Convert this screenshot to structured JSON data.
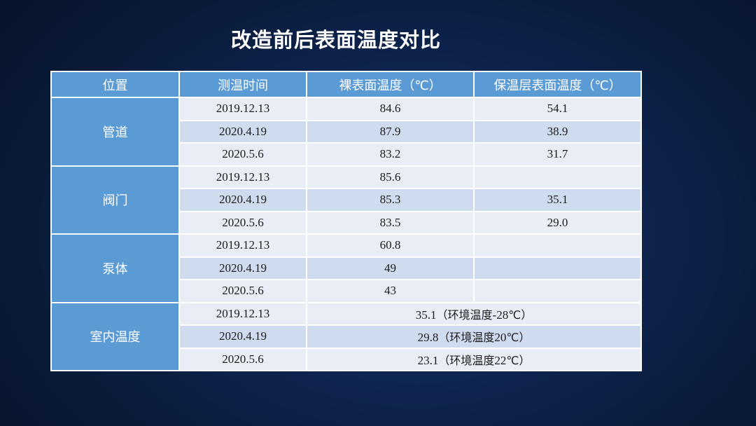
{
  "title": "改造前后表面温度对比",
  "table": {
    "headers": [
      "位置",
      "测温时间",
      "裸表面温度（℃）",
      "保温层表面温度（℃）"
    ],
    "groups": [
      {
        "location": "管道",
        "rows": [
          {
            "date": "2019.12.13",
            "bare": "84.6",
            "insulated": "54.1"
          },
          {
            "date": "2020.4.19",
            "bare": "87.9",
            "insulated": "38.9"
          },
          {
            "date": "2020.5.6",
            "bare": "83.2",
            "insulated": "31.7"
          }
        ]
      },
      {
        "location": "阀门",
        "rows": [
          {
            "date": "2019.12.13",
            "bare": "85.6",
            "insulated": ""
          },
          {
            "date": "2020.4.19",
            "bare": "85.3",
            "insulated": "35.1"
          },
          {
            "date": "2020.5.6",
            "bare": "83.5",
            "insulated": "29.0"
          }
        ]
      },
      {
        "location": "泵体",
        "rows": [
          {
            "date": "2019.12.13",
            "bare": "60.8",
            "insulated": ""
          },
          {
            "date": "2020.4.19",
            "bare": "49",
            "insulated": ""
          },
          {
            "date": "2020.5.6",
            "bare": "43",
            "insulated": ""
          }
        ]
      },
      {
        "location": "室内温度",
        "rows": [
          {
            "date": "2019.12.13",
            "value_num": "35.1",
            "value_note": "（环境温度",
            "value_num2": "-28",
            "value_unit": "℃）"
          },
          {
            "date": "2020.4.19",
            "value_num": "29.8",
            "value_note": "（环境温度",
            "value_num2": "20",
            "value_unit": "℃）"
          },
          {
            "date": "2020.5.6",
            "value_num": "23.1",
            "value_note": "（环境温度",
            "value_num2": "22",
            "value_unit": "℃）"
          }
        ]
      }
    ]
  },
  "colors": {
    "header_bg": "#5b9bd5",
    "row_light": "#e9eef6",
    "row_dark": "#cfdbee",
    "background": "#0e2550"
  }
}
